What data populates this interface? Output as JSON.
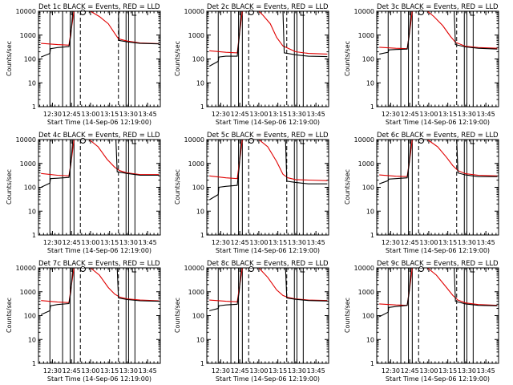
{
  "colors": {
    "events": "#000000",
    "lld": "#e00000",
    "background": "#ffffff",
    "axes": "#000000"
  },
  "panels": [
    {
      "title": "Det 1c BLACK = Events, RED = LLD",
      "xlabel": "Start Time (14-Sep-06 12:19:00)",
      "ylabel": "Counts/sec"
    },
    {
      "title": "Det 2c BLACK = Events, RED = LLD",
      "xlabel": "Start Time (14-Sep-06 12:19:00)",
      "ylabel": "Counts/sec"
    },
    {
      "title": "Det 3c BLACK = Events, RED = LLD",
      "xlabel": "Start Time (14-Sep-06 12:19:00)",
      "ylabel": "Counts/sec"
    },
    {
      "title": "Det 4c BLACK = Events, RED = LLD",
      "xlabel": "Start Time (14-Sep-06 12:19:00)",
      "ylabel": "Counts/sec"
    },
    {
      "title": "Det 5c BLACK = Events, RED = LLD",
      "xlabel": "Start Time (14-Sep-06 12:19:00)",
      "ylabel": "Counts/sec"
    },
    {
      "title": "Det 6c BLACK = Events, RED = LLD",
      "xlabel": "Start Time (14-Sep-06 12:19:00)",
      "ylabel": "Counts/sec"
    },
    {
      "title": "Det 7c BLACK = Events, RED = LLD",
      "xlabel": "Start Time (14-Sep-06 12:19:00)",
      "ylabel": "Counts/sec"
    },
    {
      "title": "Det 8c BLACK = Events, RED = LLD",
      "xlabel": "Start Time (14-Sep-06 12:19:00)",
      "ylabel": "Counts/sec"
    },
    {
      "title": "Det 9c BLACK = Events, RED = LLD",
      "xlabel": "Start Time (14-Sep-06 12:19:00)",
      "ylabel": "Counts/sec"
    }
  ],
  "chart_data": {
    "type": "line",
    "layout": "3x3 grid",
    "x_ticks": [
      "12:30",
      "12:45",
      "13:00",
      "13:15",
      "13:30",
      "13:45"
    ],
    "x_tick_minutes": [
      11,
      26,
      41,
      56,
      71,
      86
    ],
    "xlim_minutes": [
      0,
      96
    ],
    "yscale": "log",
    "ylim": [
      1,
      10000
    ],
    "y_ticks": [
      "1",
      "10",
      "100",
      "1000",
      "10000"
    ],
    "grid": false,
    "legend": "none",
    "solid_markers_minutes": [
      9,
      19,
      25,
      28,
      69,
      71,
      76
    ],
    "dashed_markers_minutes": [
      33,
      63
    ],
    "circle_marker_minute": 35,
    "box_marker_minute": 74,
    "series": [
      {
        "name": "Events",
        "color": "#000000",
        "panels": [
          [
            [
              2,
              120
            ],
            [
              9,
              170
            ],
            [
              9.5,
              270
            ],
            [
              15,
              300
            ],
            [
              24,
              330
            ],
            [
              25.5,
              1000
            ],
            [
              27,
              10000
            ],
            [
              63,
              10000
            ],
            [
              63.5,
              600
            ],
            [
              70,
              520
            ],
            [
              80,
              450
            ],
            [
              95,
              430
            ]
          ],
          [
            [
              2,
              50
            ],
            [
              9,
              80
            ],
            [
              9.5,
              120
            ],
            [
              15,
              130
            ],
            [
              24,
              130
            ],
            [
              25.5,
              800
            ],
            [
              27,
              10000
            ],
            [
              60,
              10000
            ],
            [
              61,
              180
            ],
            [
              70,
              150
            ],
            [
              80,
              130
            ],
            [
              95,
              125
            ]
          ],
          [
            [
              2,
              160
            ],
            [
              9,
              190
            ],
            [
              9.5,
              240
            ],
            [
              15,
              250
            ],
            [
              24,
              260
            ],
            [
              25.5,
              900
            ],
            [
              27,
              10000
            ],
            [
              61,
              10000
            ],
            [
              62,
              400
            ],
            [
              70,
              320
            ],
            [
              80,
              280
            ],
            [
              95,
              260
            ]
          ],
          [
            [
              2,
              100
            ],
            [
              9,
              150
            ],
            [
              9.5,
              230
            ],
            [
              15,
              240
            ],
            [
              24,
              260
            ],
            [
              25.5,
              900
            ],
            [
              27,
              10000
            ],
            [
              61,
              10000
            ],
            [
              62,
              450
            ],
            [
              70,
              380
            ],
            [
              80,
              320
            ],
            [
              95,
              320
            ]
          ],
          [
            [
              2,
              30
            ],
            [
              9,
              50
            ],
            [
              9.5,
              100
            ],
            [
              15,
              110
            ],
            [
              24,
              120
            ],
            [
              25.5,
              700
            ],
            [
              27,
              10000
            ],
            [
              62,
              10000
            ],
            [
              63,
              180
            ],
            [
              70,
              160
            ],
            [
              80,
              140
            ],
            [
              95,
              140
            ]
          ],
          [
            [
              2,
              140
            ],
            [
              9,
              190
            ],
            [
              9.5,
              220
            ],
            [
              15,
              230
            ],
            [
              24,
              250
            ],
            [
              25.5,
              900
            ],
            [
              27,
              10000
            ],
            [
              63,
              10000
            ],
            [
              64,
              400
            ],
            [
              70,
              330
            ],
            [
              80,
              280
            ],
            [
              95,
              280
            ]
          ],
          [
            [
              2,
              110
            ],
            [
              9,
              160
            ],
            [
              9.5,
              260
            ],
            [
              15,
              290
            ],
            [
              24,
              320
            ],
            [
              25.5,
              1000
            ],
            [
              27,
              10000
            ],
            [
              62,
              10000
            ],
            [
              63,
              550
            ],
            [
              70,
              470
            ],
            [
              80,
              420
            ],
            [
              95,
              400
            ]
          ],
          [
            [
              2,
              160
            ],
            [
              9,
              200
            ],
            [
              9.5,
              260
            ],
            [
              15,
              280
            ],
            [
              24,
              300
            ],
            [
              25.5,
              1000
            ],
            [
              27,
              10000
            ],
            [
              62,
              10000
            ],
            [
              63,
              550
            ],
            [
              70,
              480
            ],
            [
              80,
              430
            ],
            [
              95,
              410
            ]
          ],
          [
            [
              2,
              90
            ],
            [
              9,
              140
            ],
            [
              9.5,
              220
            ],
            [
              15,
              240
            ],
            [
              24,
              270
            ],
            [
              25.5,
              900
            ],
            [
              27,
              10000
            ],
            [
              61,
              10000
            ],
            [
              62,
              400
            ],
            [
              70,
              310
            ],
            [
              80,
              270
            ],
            [
              95,
              260
            ]
          ]
        ]
      },
      {
        "name": "LLD",
        "color": "#e00000",
        "panels": [
          [
            [
              2,
              450
            ],
            [
              15,
              400
            ],
            [
              24,
              380
            ],
            [
              26,
              2000
            ],
            [
              28,
              10000
            ],
            [
              41,
              10000
            ],
            [
              48,
              6000
            ],
            [
              55,
              3000
            ],
            [
              60,
              1200
            ],
            [
              63,
              700
            ],
            [
              70,
              560
            ],
            [
              80,
              470
            ],
            [
              95,
              440
            ]
          ],
          [
            [
              2,
              220
            ],
            [
              15,
              190
            ],
            [
              24,
              180
            ],
            [
              26,
              1500
            ],
            [
              28,
              10000
            ],
            [
              41,
              10000
            ],
            [
              44,
              7000
            ],
            [
              50,
              3000
            ],
            [
              55,
              800
            ],
            [
              60,
              350
            ],
            [
              70,
              200
            ],
            [
              80,
              170
            ],
            [
              95,
              160
            ]
          ],
          [
            [
              2,
              310
            ],
            [
              15,
              280
            ],
            [
              24,
              270
            ],
            [
              26,
              1500
            ],
            [
              28,
              10000
            ],
            [
              40,
              10000
            ],
            [
              45,
              6000
            ],
            [
              52,
              2500
            ],
            [
              58,
              900
            ],
            [
              62,
              500
            ],
            [
              70,
              340
            ],
            [
              80,
              300
            ],
            [
              95,
              280
            ]
          ],
          [
            [
              2,
              380
            ],
            [
              15,
              320
            ],
            [
              24,
              300
            ],
            [
              26,
              1500
            ],
            [
              28,
              10000
            ],
            [
              40,
              10000
            ],
            [
              47,
              5000
            ],
            [
              54,
              1500
            ],
            [
              60,
              700
            ],
            [
              64,
              500
            ],
            [
              70,
              400
            ],
            [
              80,
              340
            ],
            [
              95,
              340
            ]
          ],
          [
            [
              2,
              300
            ],
            [
              15,
              250
            ],
            [
              24,
              230
            ],
            [
              26,
              1500
            ],
            [
              28,
              10000
            ],
            [
              41,
              10000
            ],
            [
              48,
              5000
            ],
            [
              55,
              1200
            ],
            [
              60,
              350
            ],
            [
              64,
              250
            ],
            [
              70,
              210
            ],
            [
              80,
              200
            ],
            [
              95,
              190
            ]
          ],
          [
            [
              2,
              330
            ],
            [
              15,
              290
            ],
            [
              24,
              280
            ],
            [
              26,
              1500
            ],
            [
              28,
              10000
            ],
            [
              40,
              10000
            ],
            [
              48,
              5000
            ],
            [
              55,
              1800
            ],
            [
              60,
              800
            ],
            [
              64,
              500
            ],
            [
              70,
              370
            ],
            [
              80,
              320
            ],
            [
              95,
              300
            ]
          ],
          [
            [
              2,
              430
            ],
            [
              15,
              370
            ],
            [
              24,
              350
            ],
            [
              26,
              2000
            ],
            [
              28,
              10000
            ],
            [
              41,
              10000
            ],
            [
              48,
              5000
            ],
            [
              55,
              1500
            ],
            [
              60,
              800
            ],
            [
              64,
              600
            ],
            [
              70,
              500
            ],
            [
              80,
              450
            ],
            [
              95,
              420
            ]
          ],
          [
            [
              2,
              450
            ],
            [
              15,
              400
            ],
            [
              24,
              380
            ],
            [
              26,
              2000
            ],
            [
              28,
              10000
            ],
            [
              41,
              10000
            ],
            [
              48,
              4000
            ],
            [
              55,
              1200
            ],
            [
              60,
              700
            ],
            [
              64,
              580
            ],
            [
              70,
              500
            ],
            [
              80,
              450
            ],
            [
              95,
              430
            ]
          ],
          [
            [
              2,
              310
            ],
            [
              15,
              280
            ],
            [
              24,
              270
            ],
            [
              26,
              1500
            ],
            [
              28,
              10000
            ],
            [
              40,
              10000
            ],
            [
              47,
              5000
            ],
            [
              55,
              1500
            ],
            [
              60,
              700
            ],
            [
              64,
              450
            ],
            [
              70,
              340
            ],
            [
              80,
              290
            ],
            [
              95,
              270
            ]
          ]
        ]
      }
    ]
  }
}
